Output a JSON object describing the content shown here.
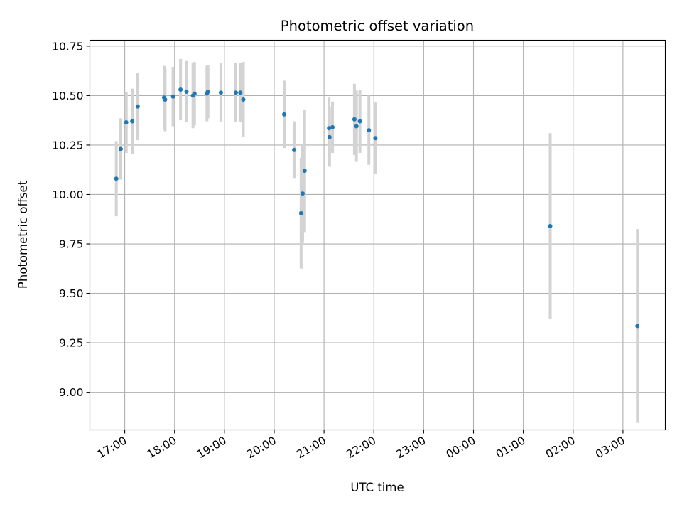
{
  "chart_data": {
    "type": "scatter",
    "title": "Photometric offset variation",
    "xlabel": "UTC time",
    "ylabel": "Photometric offset",
    "x_unit": "hours since 00:00 UTC of first day (values past 24 fall on the following day)",
    "xlim": [
      16.3,
      27.85
    ],
    "ylim": [
      8.81,
      10.78
    ],
    "grid": true,
    "x_ticks": [
      {
        "value": 17,
        "label": "17:00"
      },
      {
        "value": 18,
        "label": "18:00"
      },
      {
        "value": 19,
        "label": "19:00"
      },
      {
        "value": 20,
        "label": "20:00"
      },
      {
        "value": 21,
        "label": "21:00"
      },
      {
        "value": 22,
        "label": "22:00"
      },
      {
        "value": 23,
        "label": "23:00"
      },
      {
        "value": 24,
        "label": "00:00"
      },
      {
        "value": 25,
        "label": "01:00"
      },
      {
        "value": 26,
        "label": "02:00"
      },
      {
        "value": 27,
        "label": "03:00"
      }
    ],
    "y_ticks": [
      {
        "value": 9.0,
        "label": "9.00"
      },
      {
        "value": 9.25,
        "label": "9.25"
      },
      {
        "value": 9.5,
        "label": "9.50"
      },
      {
        "value": 9.75,
        "label": "9.75"
      },
      {
        "value": 10.0,
        "label": "10.00"
      },
      {
        "value": 10.25,
        "label": "10.25"
      },
      {
        "value": 10.5,
        "label": "10.50"
      },
      {
        "value": 10.75,
        "label": "10.75"
      }
    ],
    "series": [
      {
        "marker_color": "#1f77b4",
        "errorbar_color": "#d3d3d3",
        "points": [
          {
            "x": 16.83,
            "y": 10.08,
            "err": 0.19
          },
          {
            "x": 16.92,
            "y": 10.23,
            "err": 0.155
          },
          {
            "x": 17.03,
            "y": 10.365,
            "err": 0.155
          },
          {
            "x": 17.15,
            "y": 10.37,
            "err": 0.165
          },
          {
            "x": 17.26,
            "y": 10.445,
            "err": 0.17
          },
          {
            "x": 17.79,
            "y": 10.49,
            "err": 0.16
          },
          {
            "x": 17.81,
            "y": 10.48,
            "err": 0.16
          },
          {
            "x": 17.97,
            "y": 10.495,
            "err": 0.15
          },
          {
            "x": 18.12,
            "y": 10.53,
            "err": 0.155
          },
          {
            "x": 18.24,
            "y": 10.52,
            "err": 0.155
          },
          {
            "x": 18.37,
            "y": 10.5,
            "err": 0.165
          },
          {
            "x": 18.4,
            "y": 10.51,
            "err": 0.16
          },
          {
            "x": 18.65,
            "y": 10.51,
            "err": 0.14
          },
          {
            "x": 18.67,
            "y": 10.52,
            "err": 0.135
          },
          {
            "x": 18.93,
            "y": 10.515,
            "err": 0.15
          },
          {
            "x": 19.23,
            "y": 10.515,
            "err": 0.15
          },
          {
            "x": 19.32,
            "y": 10.515,
            "err": 0.15
          },
          {
            "x": 19.38,
            "y": 10.48,
            "err": 0.19
          },
          {
            "x": 20.2,
            "y": 10.405,
            "err": 0.17
          },
          {
            "x": 20.4,
            "y": 10.225,
            "err": 0.145
          },
          {
            "x": 20.54,
            "y": 9.905,
            "err": 0.28
          },
          {
            "x": 20.57,
            "y": 10.005,
            "err": 0.25
          },
          {
            "x": 20.61,
            "y": 10.12,
            "err": 0.31
          },
          {
            "x": 21.1,
            "y": 10.335,
            "err": 0.155
          },
          {
            "x": 21.11,
            "y": 10.29,
            "err": 0.15
          },
          {
            "x": 21.17,
            "y": 10.34,
            "err": 0.13
          },
          {
            "x": 21.61,
            "y": 10.38,
            "err": 0.18
          },
          {
            "x": 21.65,
            "y": 10.345,
            "err": 0.18
          },
          {
            "x": 21.72,
            "y": 10.37,
            "err": 0.16
          },
          {
            "x": 21.9,
            "y": 10.325,
            "err": 0.175
          },
          {
            "x": 22.03,
            "y": 10.285,
            "err": 0.18
          },
          {
            "x": 25.54,
            "y": 9.84,
            "err": 0.47
          },
          {
            "x": 27.29,
            "y": 9.335,
            "err": 0.49
          }
        ]
      }
    ]
  }
}
